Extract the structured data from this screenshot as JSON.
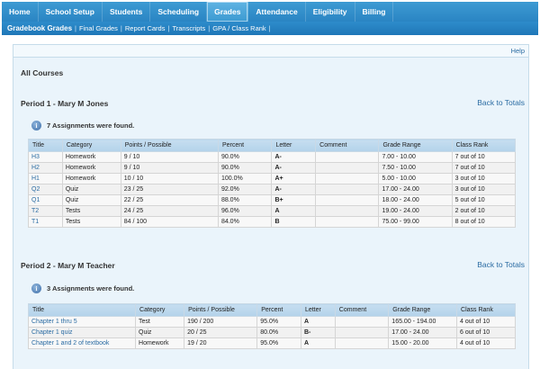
{
  "topnav": {
    "tabs": [
      {
        "label": "Home",
        "active": false
      },
      {
        "label": "School Setup",
        "active": false
      },
      {
        "label": "Students",
        "active": false
      },
      {
        "label": "Scheduling",
        "active": false
      },
      {
        "label": "Grades",
        "active": true
      },
      {
        "label": "Attendance",
        "active": false
      },
      {
        "label": "Eligibility",
        "active": false
      },
      {
        "label": "Billing",
        "active": false
      }
    ]
  },
  "subnav": {
    "items": [
      {
        "label": "Gradebook Grades",
        "active": true
      },
      {
        "label": "Final Grades",
        "active": false
      },
      {
        "label": "Report Cards",
        "active": false
      },
      {
        "label": "Transcripts",
        "active": false
      },
      {
        "label": "GPA / Class Rank",
        "active": false
      }
    ]
  },
  "help_label": "Help",
  "page_heading": "All Courses",
  "back_label": "Back to Totals",
  "periods": [
    {
      "title": "Period 1 - Mary M Jones",
      "found": "7 Assignments were found.",
      "headers": [
        "Title",
        "Category",
        "Points / Possible",
        "Percent",
        "Letter",
        "Comment",
        "Grade Range",
        "Class Rank"
      ],
      "rows": [
        [
          "H3",
          "Homework",
          "9 / 10",
          "90.0%",
          "A-",
          "",
          "7.00 - 10.00",
          "7 out of 10"
        ],
        [
          "H2",
          "Homework",
          "9 / 10",
          "90.0%",
          "A-",
          "",
          "7.50 - 10.00",
          "7 out of 10"
        ],
        [
          "H1",
          "Homework",
          "10 / 10",
          "100.0%",
          "A+",
          "",
          "5.00 - 10.00",
          "3 out of 10"
        ],
        [
          "Q2",
          "Quiz",
          "23 / 25",
          "92.0%",
          "A-",
          "",
          "17.00 - 24.00",
          "3 out of 10"
        ],
        [
          "Q1",
          "Quiz",
          "22 / 25",
          "88.0%",
          "B+",
          "",
          "18.00 - 24.00",
          "5 out of 10"
        ],
        [
          "T2",
          "Tests",
          "24 / 25",
          "96.0%",
          "A",
          "",
          "19.00 - 24.00",
          "2 out of 10"
        ],
        [
          "T1",
          "Tests",
          "84 / 100",
          "84.0%",
          "B",
          "",
          "75.00 - 99.00",
          "8 out of 10"
        ]
      ]
    },
    {
      "title": "Period 2 - Mary M Teacher",
      "found": "3 Assignments were found.",
      "headers": [
        "Title",
        "Category",
        "Points / Possible",
        "Percent",
        "Letter",
        "Comment",
        "Grade Range",
        "Class Rank"
      ],
      "rows": [
        [
          "Chapter 1 thru 5",
          "Test",
          "190 / 200",
          "95.0%",
          "A",
          "",
          "165.00 - 194.00",
          "4 out of 10"
        ],
        [
          "Chapter 1 quiz",
          "Quiz",
          "20 / 25",
          "80.0%",
          "B-",
          "",
          "17.00 - 24.00",
          "6 out of 10"
        ],
        [
          "Chapter 1 and 2 of textbook",
          "Homework",
          "19 / 20",
          "95.0%",
          "A",
          "",
          "15.00 - 20.00",
          "4 out of 10"
        ]
      ]
    }
  ]
}
